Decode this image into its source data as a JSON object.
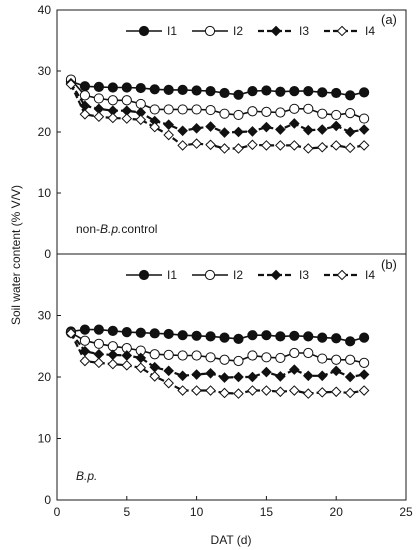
{
  "chart_data": [
    {
      "type": "line",
      "panel_label": "(a)",
      "annotation": {
        "prefix": "non-",
        "italic": "B.p.",
        "suffix": "control"
      },
      "ylabel": "Soil water content  (% V/V)",
      "xlabel": "",
      "xlim": [
        0,
        25
      ],
      "ylim": [
        0,
        40
      ],
      "xticks": [],
      "yticks": [
        "0",
        "10",
        "20",
        "30",
        "40"
      ],
      "legend_position": "top",
      "x": [
        1,
        2,
        3,
        4,
        5,
        6,
        7,
        8,
        9,
        10,
        11,
        12,
        13,
        14,
        15,
        16,
        17,
        18,
        19,
        20,
        21,
        22
      ],
      "series": [
        {
          "name": "I1",
          "marker": "filled-circle",
          "line": "solid",
          "values": [
            28.3,
            27.5,
            27.4,
            27.3,
            27.3,
            27.2,
            27.0,
            26.9,
            26.9,
            26.8,
            26.7,
            26.4,
            26.1,
            26.7,
            26.8,
            26.6,
            26.7,
            26.7,
            26.5,
            26.4,
            26.0,
            26.5
          ]
        },
        {
          "name": "I2",
          "marker": "open-circle",
          "line": "solid",
          "values": [
            28.6,
            26.0,
            25.5,
            25.2,
            25.2,
            24.6,
            23.7,
            23.7,
            23.7,
            23.7,
            23.6,
            23.0,
            22.8,
            23.4,
            23.3,
            23.2,
            23.8,
            23.8,
            23.0,
            22.8,
            23.1,
            22.2
          ]
        },
        {
          "name": "I3",
          "marker": "filled-diamond",
          "line": "dashed",
          "values": [
            28.0,
            24.3,
            23.8,
            23.5,
            23.5,
            23.2,
            21.8,
            21.2,
            20.2,
            20.6,
            20.9,
            19.9,
            20.0,
            20.1,
            20.8,
            20.4,
            21.4,
            20.3,
            20.4,
            21.0,
            20.0,
            20.4
          ]
        },
        {
          "name": "I4",
          "marker": "open-diamond",
          "line": "dashed",
          "values": [
            27.8,
            22.9,
            22.5,
            22.3,
            22.2,
            22.0,
            20.8,
            19.5,
            17.8,
            18.1,
            17.9,
            17.3,
            17.3,
            17.9,
            17.8,
            17.8,
            17.8,
            17.3,
            17.5,
            17.8,
            17.4,
            17.8
          ]
        }
      ]
    },
    {
      "type": "line",
      "panel_label": "(b)",
      "annotation": {
        "prefix": "",
        "italic": "B.p.",
        "suffix": ""
      },
      "ylabel": "Soil water content  (% V/V)",
      "xlabel": "DAT (d)",
      "xlim": [
        0,
        25
      ],
      "ylim": [
        0,
        40
      ],
      "xticks": [
        "0",
        "5",
        "10",
        "15",
        "20",
        "25"
      ],
      "yticks": [
        "0",
        "10",
        "20",
        "30"
      ],
      "legend_position": "top",
      "x": [
        1,
        2,
        3,
        4,
        5,
        6,
        7,
        8,
        9,
        10,
        11,
        12,
        13,
        14,
        15,
        16,
        17,
        18,
        19,
        20,
        21,
        22
      ],
      "series": [
        {
          "name": "I1",
          "marker": "filled-circle",
          "line": "solid",
          "values": [
            27.4,
            27.7,
            27.7,
            27.5,
            27.3,
            27.2,
            27.1,
            27.0,
            26.8,
            26.7,
            26.6,
            26.4,
            26.2,
            26.8,
            26.8,
            26.6,
            26.7,
            26.6,
            26.4,
            26.3,
            25.8,
            26.4
          ]
        },
        {
          "name": "I2",
          "marker": "open-circle",
          "line": "solid",
          "values": [
            27.2,
            25.9,
            25.4,
            25.0,
            24.7,
            24.3,
            23.7,
            23.6,
            23.5,
            23.5,
            23.2,
            22.8,
            22.6,
            23.5,
            23.2,
            23.1,
            23.9,
            23.9,
            23.0,
            22.8,
            22.8,
            22.3
          ]
        },
        {
          "name": "I3",
          "marker": "filled-diamond",
          "line": "dashed",
          "values": [
            27.2,
            24.2,
            23.7,
            23.6,
            23.5,
            23.1,
            21.6,
            21.0,
            20.2,
            20.4,
            20.6,
            19.9,
            20.0,
            20.0,
            20.8,
            20.1,
            21.2,
            20.2,
            20.2,
            21.0,
            20.0,
            20.4
          ]
        },
        {
          "name": "I4",
          "marker": "open-diamond",
          "line": "dashed",
          "values": [
            27.1,
            22.6,
            22.3,
            22.1,
            21.9,
            21.5,
            20.1,
            19.0,
            17.8,
            17.8,
            17.8,
            17.4,
            17.3,
            17.8,
            17.8,
            17.6,
            17.8,
            17.3,
            17.5,
            17.6,
            17.4,
            17.8
          ]
        }
      ]
    }
  ]
}
